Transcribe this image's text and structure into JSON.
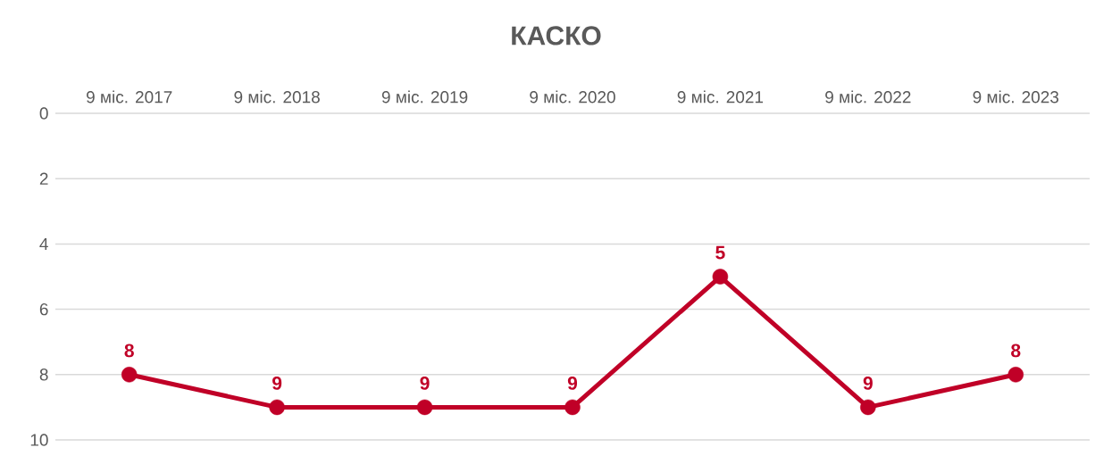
{
  "chart_data": {
    "type": "line",
    "title": "КАСКО",
    "categories": [
      "9 міс. 2017",
      "9 міс. 2018",
      "9 міс. 2019",
      "9 міс. 2020",
      "9 міс. 2021",
      "9 міс. 2022",
      "9 міс. 2023"
    ],
    "values": [
      8,
      9,
      9,
      9,
      5,
      9,
      8
    ],
    "color": "#c00027",
    "ylim": [
      10,
      0
    ],
    "yticks": [
      0,
      2,
      4,
      6,
      8,
      10
    ],
    "grid": "y",
    "marker": "circle",
    "line_style": "solid",
    "data_labels": true
  }
}
